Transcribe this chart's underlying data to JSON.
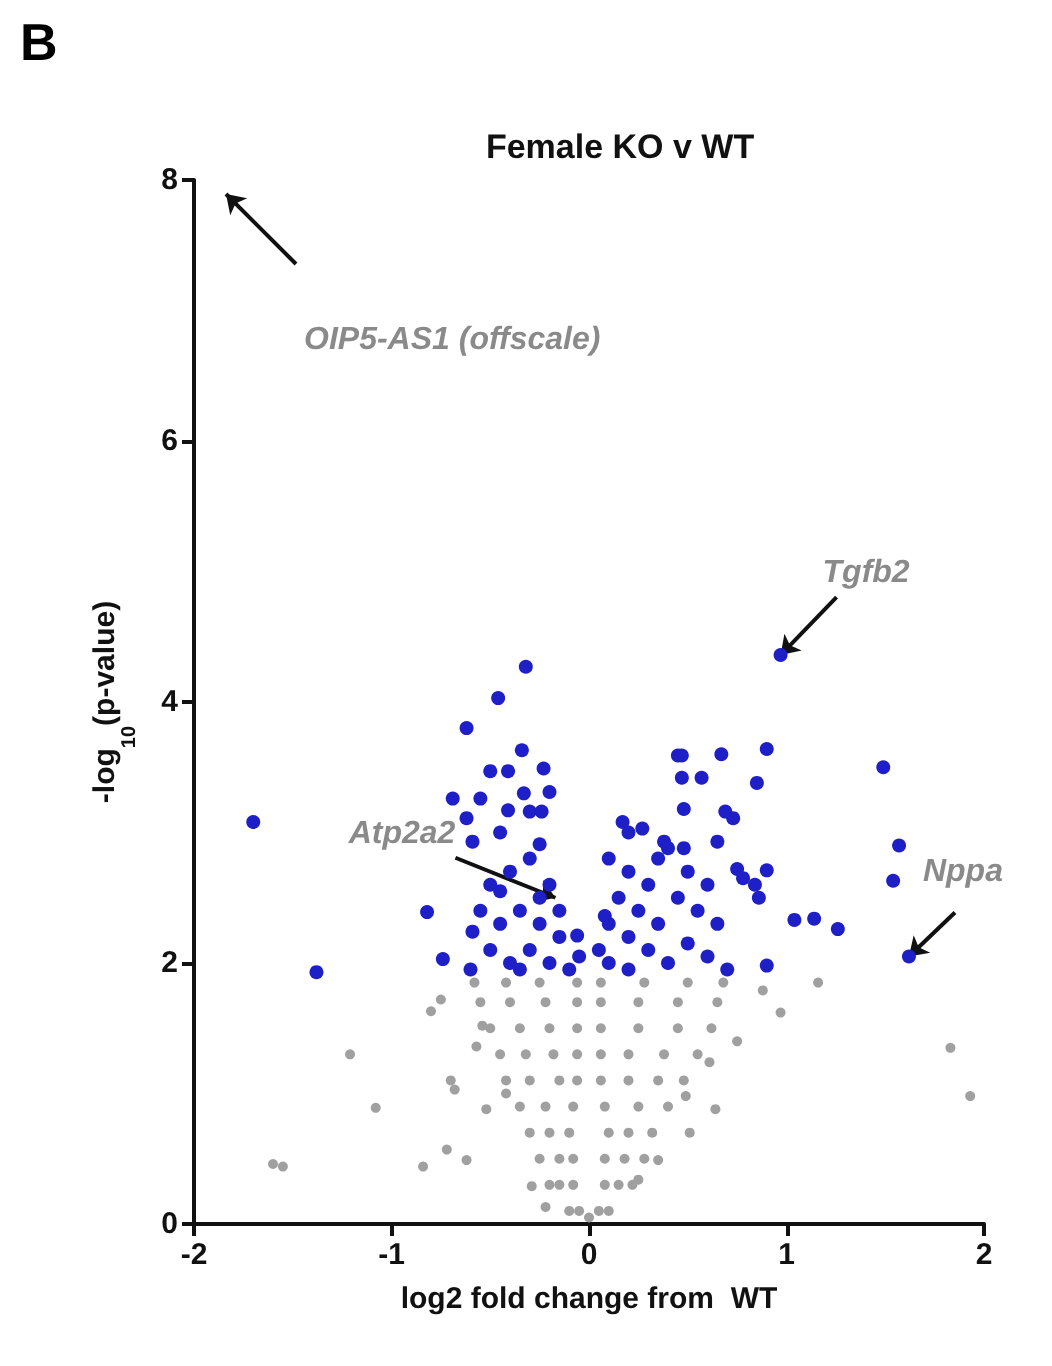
{
  "chart_data": {
    "type": "scatter",
    "title": "Female KO v WT",
    "xlabel": "log2 fold change from  WT",
    "ylabel": "-log$_{10}$(p-value)",
    "xlim": [
      -2,
      2
    ],
    "xticks": [
      -2,
      -1,
      0,
      1,
      2
    ],
    "ylim": [
      0,
      8
    ],
    "yticks": [
      0,
      2,
      4,
      6,
      8
    ],
    "grid": false,
    "marker": "circle",
    "annotations": [
      "B",
      "OIP5-AS1 (offscale)",
      {
        "text": "Tgfb2",
        "x": 0.97,
        "y": 4.36
      },
      {
        "text": "Atp2a2",
        "x": -0.17,
        "y": 2.5
      },
      {
        "text": "Nppa",
        "x": 1.62,
        "y": 2.05
      }
    ],
    "series": [
      {
        "color": "#a0a0a0",
        "x": [
          -0.05,
          -0.1,
          0.05,
          0.1,
          0,
          -0.15,
          -0.08,
          -0.2,
          0.08,
          0.15,
          0.22,
          -0.25,
          -0.15,
          -0.08,
          0.08,
          0.18,
          0.28,
          -0.3,
          -0.2,
          -0.1,
          0.1,
          0.2,
          0.32,
          -0.35,
          -0.22,
          -0.08,
          0.08,
          0.25,
          0.4,
          -0.42,
          -0.3,
          -0.15,
          -0.06,
          0.06,
          0.2,
          0.35,
          0.48,
          -0.45,
          -0.32,
          -0.18,
          -0.06,
          0.06,
          0.2,
          0.38,
          0.55,
          -0.5,
          -0.35,
          -0.2,
          -0.06,
          0.06,
          0.25,
          0.45,
          0.62,
          -0.55,
          -0.4,
          -0.22,
          -0.06,
          0.06,
          0.25,
          0.45,
          0.65,
          -0.58,
          -0.42,
          -0.25,
          -0.06,
          0.06,
          0.28,
          0.5,
          0.68,
          1.16,
          1.83,
          1.93,
          0.97,
          0.88,
          0.75,
          0.64,
          0.61,
          -1.21,
          -1.08,
          -1.6,
          -1.55,
          -0.8,
          -0.75,
          -0.7,
          -0.68,
          -0.84,
          -0.72,
          -0.62,
          -0.52,
          -0.42,
          -0.54,
          -0.57,
          -0.29,
          -0.22,
          0.51,
          0.35,
          0.25,
          0.49
        ],
        "values": [
          0.1,
          0.1,
          0.1,
          0.1,
          0.05,
          0.3,
          0.3,
          0.3,
          0.3,
          0.3,
          0.3,
          0.5,
          0.5,
          0.5,
          0.5,
          0.5,
          0.5,
          0.7,
          0.7,
          0.7,
          0.7,
          0.7,
          0.7,
          0.9,
          0.9,
          0.9,
          0.9,
          0.9,
          0.9,
          1.1,
          1.1,
          1.1,
          1.1,
          1.1,
          1.1,
          1.1,
          1.1,
          1.3,
          1.3,
          1.3,
          1.3,
          1.3,
          1.3,
          1.3,
          1.3,
          1.5,
          1.5,
          1.5,
          1.5,
          1.5,
          1.5,
          1.5,
          1.5,
          1.7,
          1.7,
          1.7,
          1.7,
          1.7,
          1.7,
          1.7,
          1.7,
          1.85,
          1.85,
          1.85,
          1.85,
          1.85,
          1.85,
          1.85,
          1.85,
          1.85,
          1.35,
          0.98,
          1.62,
          1.79,
          1.4,
          0.88,
          1.24,
          1.3,
          0.89,
          0.46,
          0.44,
          1.63,
          1.72,
          1.1,
          1.03,
          0.44,
          0.57,
          0.49,
          0.88,
          1.0,
          1.52,
          1.36,
          0.29,
          0.13,
          0.7,
          0.49,
          0.34,
          0.98
        ]
      },
      {
        "color": "#1f1fc8",
        "x": [
          -0.32,
          -0.46,
          -0.62,
          -0.34,
          -0.5,
          -0.41,
          -0.23,
          -0.69,
          -0.55,
          -0.33,
          -0.2,
          -0.62,
          -0.41,
          -0.3,
          -0.24,
          -1.7,
          -0.45,
          -0.59,
          -0.25,
          -0.82,
          -0.74,
          -1.38,
          -0.59,
          -0.06,
          0.08,
          -0.5,
          -0.4,
          -0.3,
          -0.2,
          -0.55,
          -0.45,
          -0.35,
          -0.25,
          -0.15,
          -0.5,
          -0.4,
          -0.3,
          -0.2,
          -0.1,
          -0.6,
          -0.35,
          -0.25,
          -0.45,
          -0.15,
          -0.05,
          0.97,
          0.45,
          0.47,
          0.67,
          0.9,
          1.49,
          0.47,
          0.57,
          0.85,
          0.48,
          0.69,
          0.73,
          0.17,
          0.27,
          0.2,
          0.38,
          0.4,
          0.48,
          0.65,
          1.57,
          1.54,
          0.75,
          0.78,
          0.9,
          0.84,
          0.86,
          1.04,
          1.14,
          1.26,
          1.62,
          0.9,
          0.1,
          0.2,
          0.3,
          0.15,
          0.25,
          0.35,
          0.45,
          0.55,
          0.1,
          0.2,
          0.3,
          0.4,
          0.5,
          0.6,
          0.1,
          0.2,
          0.65,
          0.7,
          0.5,
          0.6,
          0.05,
          0.35
        ],
        "values": [
          4.27,
          4.03,
          3.8,
          3.63,
          3.47,
          3.47,
          3.49,
          3.26,
          3.26,
          3.3,
          3.31,
          3.11,
          3.17,
          3.16,
          3.16,
          3.08,
          3.0,
          2.93,
          2.91,
          2.39,
          2.03,
          1.93,
          2.24,
          2.21,
          2.36,
          2.6,
          2.7,
          2.8,
          2.6,
          2.4,
          2.3,
          2.4,
          2.3,
          2.2,
          2.1,
          2.0,
          2.1,
          2.0,
          1.95,
          1.95,
          1.95,
          2.5,
          2.55,
          2.4,
          2.05,
          4.36,
          3.59,
          3.59,
          3.6,
          3.64,
          3.5,
          3.42,
          3.42,
          3.38,
          3.18,
          3.16,
          3.11,
          3.08,
          3.03,
          3.0,
          2.93,
          2.88,
          2.88,
          2.93,
          2.9,
          2.63,
          2.72,
          2.65,
          2.71,
          2.6,
          2.5,
          2.33,
          2.34,
          2.26,
          2.05,
          1.98,
          2.8,
          2.7,
          2.6,
          2.5,
          2.4,
          2.3,
          2.5,
          2.4,
          2.3,
          2.2,
          2.1,
          2.0,
          2.15,
          2.05,
          2.0,
          1.95,
          2.3,
          1.95,
          2.7,
          2.6,
          2.1,
          2.8
        ]
      }
    ]
  }
}
